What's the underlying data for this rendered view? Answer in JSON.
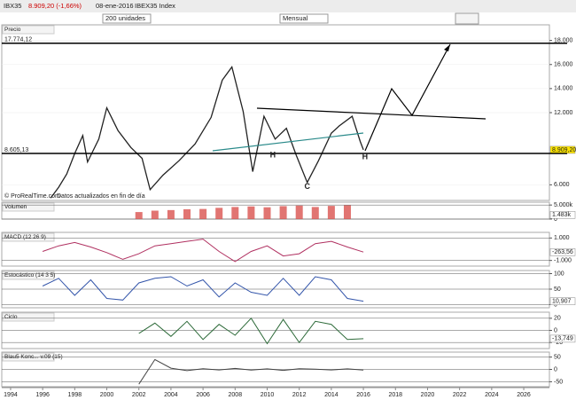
{
  "toolbar": {
    "symbol": "IBX35",
    "quote": "8.909,20 (-1,66%)",
    "date": "08-ene-2016",
    "name": "IBEX35 Index",
    "units": "200 unidades",
    "period": "Mensual"
  },
  "chart_data": [
    {
      "type": "line",
      "title": "Precio",
      "source": "© ProRealTime.com",
      "note": "Datos actualizados en fin de día",
      "color": "#222222",
      "x": [
        1996.5,
        1997,
        1997.5,
        1998,
        1998.5,
        1998.8,
        1999.5,
        2000,
        2000.7,
        2001.5,
        2002.2,
        2002.7,
        2003.5,
        2004.5,
        2005.5,
        2006.5,
        2007.2,
        2007.8,
        2008.5,
        2009.1,
        2009.8,
        2010.5,
        2011.2,
        2011.8,
        2012.5,
        2013.2,
        2014,
        2014.5,
        2015.3,
        2015.8,
        2016
      ],
      "values": [
        4900,
        5800,
        6900,
        8600,
        10100,
        7900,
        9800,
        12400,
        10500,
        9100,
        8200,
        5600,
        6800,
        8000,
        9400,
        11600,
        14700,
        15800,
        12100,
        7100,
        11700,
        9800,
        10700,
        8500,
        6200,
        8000,
        10300,
        10900,
        11700,
        9600,
        8909.2
      ],
      "xlim": [
        1993.45,
        2027.6
      ],
      "xticks": [
        1994,
        1996,
        1998,
        2000,
        2002,
        2004,
        2006,
        2008,
        2010,
        2012,
        2014,
        2016,
        2018,
        2020,
        2022,
        2024,
        2026
      ],
      "ylim": [
        4700,
        19300
      ],
      "yticks": [
        {
          "value": 6000,
          "label": "6.000"
        },
        {
          "value": 12000,
          "label": "12.000"
        },
        {
          "value": 14000,
          "label": "14.000"
        },
        {
          "value": 16000,
          "label": "16.000"
        },
        {
          "value": 18000,
          "label": "18.000"
        }
      ],
      "hlines": [
        {
          "value": 17774.12,
          "label": "17.774,12"
        },
        {
          "value": 8605.13,
          "label": "8.605,13"
        }
      ],
      "last": {
        "value": 8909.2,
        "label": "8.909,20"
      },
      "annotations": [
        {
          "text": "H",
          "x": 2010.35,
          "y": 8444
        },
        {
          "text": "H",
          "x": 2016.1,
          "y": 8300
        },
        {
          "text": "C",
          "x": 2012.5,
          "y": 5850
        }
      ]
    },
    {
      "type": "bar",
      "title": "Volumen",
      "color": "#d9534f",
      "x": [
        2002,
        2003,
        2004,
        2005,
        2006,
        2007,
        2008,
        2009,
        2010,
        2011,
        2012,
        2013,
        2014,
        2015
      ],
      "values": [
        2500,
        3000,
        3200,
        3500,
        3600,
        4000,
        4300,
        4500,
        4200,
        4600,
        4800,
        4300,
        4700,
        4900
      ],
      "ylim": [
        0,
        6000
      ],
      "yticks": [
        {
          "value": 5000,
          "label": "5.000k"
        },
        0
      ],
      "last": {
        "value": 1483,
        "label": "1.483k"
      }
    },
    {
      "type": "line",
      "title": "MACD (12 26 9)",
      "color": "#b03060",
      "x": [
        1996,
        1997,
        1998,
        1999,
        2000,
        2001,
        2002,
        2003,
        2004,
        2005,
        2006,
        2007,
        2008,
        2009,
        2010,
        2011,
        2012,
        2013,
        2014,
        2015,
        2016
      ],
      "values": [
        -200,
        300,
        600,
        200,
        -300,
        -900,
        -400,
        300,
        500,
        700,
        900,
        -200,
        -1100,
        -200,
        300,
        -600,
        -400,
        500,
        700,
        200,
        -250
      ],
      "ylim": [
        -1500,
        1500
      ],
      "yticks": [
        {
          "value": 1000,
          "label": "1.000"
        },
        {
          "value": -1000,
          "label": "-1.000"
        }
      ],
      "last": {
        "value": -263.56,
        "label": "-263,56"
      }
    },
    {
      "type": "line",
      "title": "Estocástico (14 3 5)",
      "color": "#3355aa",
      "x": [
        1996,
        1997,
        1998,
        1999,
        2000,
        2001,
        2002,
        2003,
        2004,
        2005,
        2006,
        2007,
        2008,
        2009,
        2010,
        2011,
        2012,
        2013,
        2014,
        2015,
        2016
      ],
      "values": [
        60,
        85,
        30,
        80,
        20,
        15,
        70,
        85,
        90,
        60,
        80,
        25,
        70,
        40,
        30,
        85,
        30,
        90,
        80,
        20,
        11
      ],
      "ylim": [
        -10,
        110
      ],
      "yticks": [
        100,
        50,
        0
      ],
      "last": {
        "value": 10.907,
        "label": "10,907"
      }
    },
    {
      "type": "line",
      "title": "Ciclo",
      "color": "#2e6b3a",
      "x": [
        2002,
        2003,
        2004,
        2005,
        2006,
        2007,
        2008,
        2009,
        2010,
        2011,
        2012,
        2013,
        2014,
        2015,
        2016
      ],
      "values": [
        -5,
        12,
        -10,
        15,
        -15,
        10,
        -8,
        20,
        -22,
        18,
        -20,
        15,
        10,
        -15,
        -13.749
      ],
      "ylim": [
        -30,
        30
      ],
      "yticks": [
        20,
        0,
        -20
      ],
      "last": {
        "value": -13.749,
        "label": "-13,749"
      }
    },
    {
      "type": "line",
      "title": "Blau5 Konc... v.09 (15)",
      "color": "#444444",
      "x": [
        2002,
        2003,
        2004,
        2005,
        2006,
        2007,
        2008,
        2009,
        2010,
        2011,
        2012,
        2013,
        2014,
        2015,
        2016
      ],
      "values": [
        -60,
        40,
        5,
        -5,
        3,
        -2,
        4,
        -3,
        2,
        -4,
        3,
        1,
        -2,
        2,
        -3
      ],
      "ylim": [
        -70,
        70
      ],
      "yticks": [
        50,
        0,
        -50
      ]
    }
  ]
}
